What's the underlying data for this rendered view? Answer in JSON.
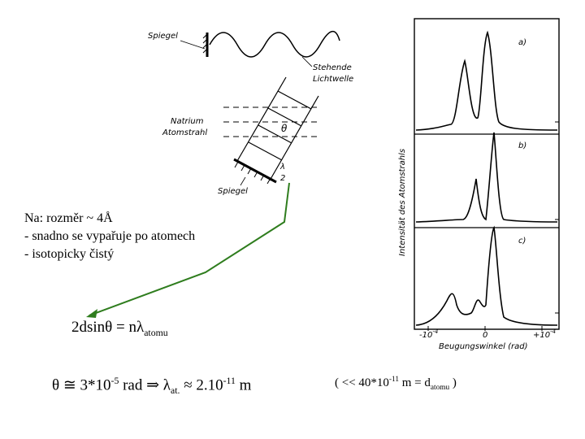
{
  "apparatus": {
    "mirror_top_label": "Spiegel",
    "standing_wave_label_1": "Stehende",
    "standing_wave_label_2": "Lichtwelle",
    "beam_label_1": "Natrium",
    "beam_label_2": "Atomstrahl",
    "theta_label": "θ",
    "lambda_label": "λ",
    "two_label": "2",
    "mirror_bottom_label": "Spiegel"
  },
  "plot": {
    "ylabel": "Intensität des Atomstrahls",
    "xlabel": "Beugungswinkel (rad)",
    "xtick_left": "-10",
    "xtick_left_exp": "-4",
    "xtick_mid": "0",
    "xtick_right": "+10",
    "xtick_right_exp": "-4",
    "panel_labels": [
      "a)",
      "b)",
      "c)"
    ]
  },
  "notes": {
    "line1": "Na: rozměr ~ 4Å",
    "line2": "- snadno se vypařuje po atomech",
    "line3": "- isotopicky čistý"
  },
  "equations": {
    "bragg_lhs": "2dsinθ = nλ",
    "bragg_sub": "atomu",
    "theta_prefix": "θ ≅ 3*10",
    "theta_exp": "-5",
    "theta_rad": " rad ⇒ λ",
    "lambda_sub": "at.",
    "approx_val": " ≈ 2.10",
    "lambda_exp": "-11",
    "unit_m": " m",
    "compare_prefix": "( << 40*10",
    "compare_exp": "-11",
    "compare_mid": " m = d",
    "compare_sub": "atomu",
    "compare_suffix": " )"
  },
  "colors": {
    "arrow": "#2f7d1e",
    "ink": "#000000"
  }
}
